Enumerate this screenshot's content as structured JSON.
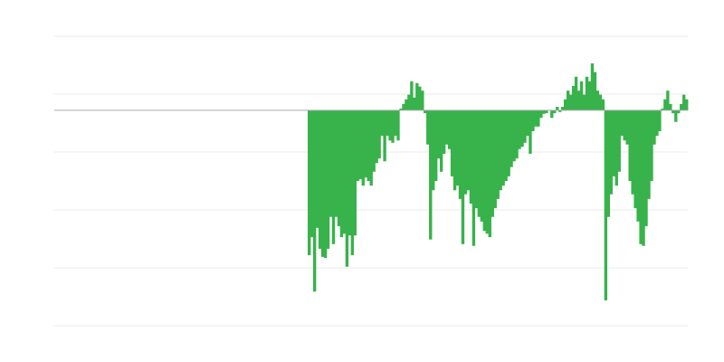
{
  "chart_data": {
    "type": "bar",
    "title": "",
    "xlabel": "",
    "ylabel": "",
    "grid": true,
    "gridlines_y": [
      1.28,
      0.28,
      -0.72,
      -1.72,
      -2.72,
      -3.72
    ],
    "ylim": [
      -3.72,
      1.28
    ],
    "xlim": [
      -94,
      141
    ],
    "zero_line": true,
    "colors": {
      "bar": "#38b24b",
      "grid": "#ebebeb",
      "zero_line": "#aaaaaa"
    },
    "values": [
      -2.5,
      -2.19,
      -3.13,
      -2.03,
      -2.39,
      -2.53,
      -2.55,
      -2.39,
      -1.84,
      -2.31,
      -1.84,
      -2,
      -2.19,
      -2.13,
      -2.7,
      -2.16,
      -2.5,
      -2.16,
      -1.22,
      -1.19,
      -1.3,
      -1.16,
      -1.22,
      -1.3,
      -1.06,
      -0.91,
      -0.83,
      -0.44,
      -0.88,
      -0.44,
      -0.52,
      -0.56,
      -0.44,
      -0.52,
      0.03,
      0.11,
      0.19,
      0.27,
      0.5,
      0.22,
      0.47,
      0.41,
      0.34,
      -0.05,
      -0.59,
      -2.23,
      -1.38,
      -1.22,
      -0.83,
      -1.06,
      -0.75,
      -0.59,
      -0.67,
      -1.14,
      -1.38,
      -1.3,
      -1.53,
      -2.31,
      -1.45,
      -1.38,
      -1.61,
      -2.34,
      -1.69,
      -1.84,
      -1.92,
      -2.08,
      -2.13,
      -2.19,
      -1.84,
      -1.69,
      -1.53,
      -1.38,
      -1.3,
      -1.22,
      -1.14,
      -0.98,
      -0.88,
      -0.83,
      -0.67,
      -0.63,
      -0.56,
      -0.44,
      -0.75,
      -0.36,
      -0.28,
      -0.28,
      -0.13,
      -0.06,
      -0.05,
      0,
      -0.13,
      -0.05,
      0.06,
      -0.03,
      0.06,
      0.19,
      0.34,
      0.27,
      0.42,
      0.58,
      0.34,
      0.5,
      0.27,
      0.58,
      0.5,
      0.81,
      0.66,
      0.34,
      0.27,
      0.19,
      -3.28,
      -1.84,
      -1.45,
      -1.14,
      -1.3,
      -1.06,
      -0.44,
      -0.52,
      -0.59,
      -1.22,
      -1.45,
      -1.69,
      -1.92,
      -2.31,
      -2.34,
      -2,
      -1.53,
      -1.22,
      -0.59,
      -0.44,
      -0.36,
      0.03,
      0.19,
      0.34,
      0.11,
      -0.05,
      -0.2,
      -0.05,
      0.11,
      0.27,
      0.19
    ]
  }
}
